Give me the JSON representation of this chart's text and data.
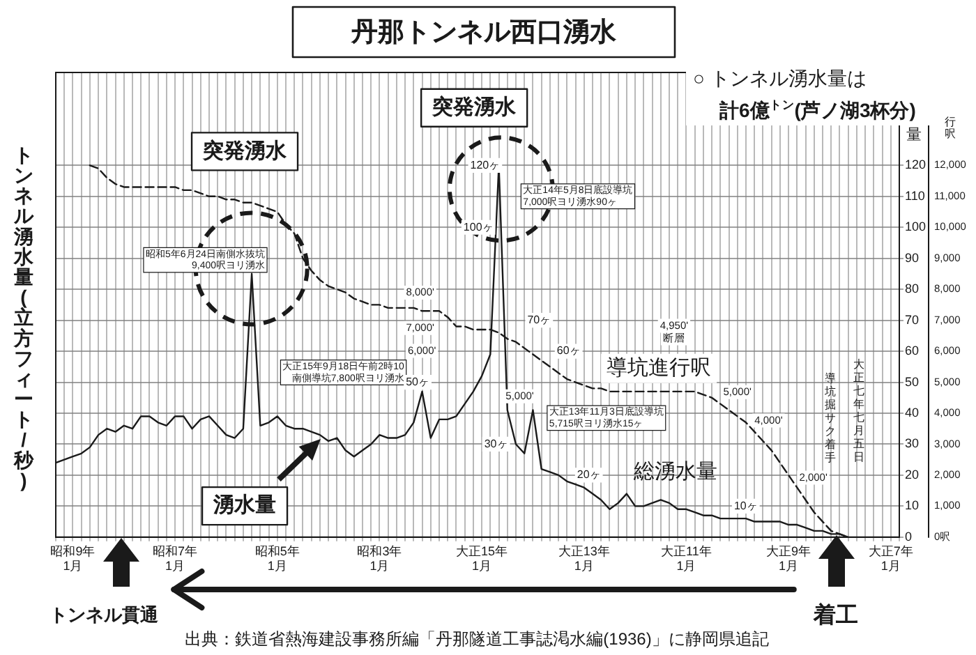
{
  "chart_data": {
    "type": "line",
    "title": "丹那トンネル西口湧水",
    "ylabel": "トンネル湧水量(立方フィート/秒)",
    "y2label": "行呎",
    "categories": [
      null,
      null,
      "昭和9年\n1月",
      null,
      null,
      null,
      null,
      null,
      null,
      null,
      null,
      null,
      null,
      null,
      "昭和7年\n1月",
      null,
      null,
      null,
      null,
      null,
      null,
      null,
      null,
      null,
      null,
      null,
      "昭和5年\n1月",
      null,
      null,
      null,
      null,
      null,
      null,
      null,
      null,
      null,
      null,
      null,
      "昭和3年\n1月",
      null,
      null,
      null,
      null,
      null,
      null,
      null,
      null,
      null,
      null,
      null,
      "大正15年\n1月",
      null,
      null,
      null,
      null,
      null,
      null,
      null,
      null,
      null,
      null,
      null,
      "大正13年\n1月",
      null,
      null,
      null,
      null,
      null,
      null,
      null,
      null,
      null,
      null,
      null,
      "大正11年\n1月",
      null,
      null,
      null,
      null,
      null,
      null,
      null,
      null,
      null,
      null,
      null,
      "大正9年\n1月",
      null,
      null,
      null,
      null,
      null,
      null,
      null,
      null,
      null,
      null,
      null,
      "大正7年\n1月",
      null
    ],
    "ylim": [
      0,
      150
    ],
    "yticks": [
      0,
      10,
      20,
      30,
      40,
      50,
      60,
      70,
      80,
      90,
      100,
      110,
      120
    ],
    "y2lim": [
      0,
      15000
    ],
    "y2ticks": [
      {
        "value": 0,
        "label": "0呎"
      },
      {
        "value": 1000,
        "label": "1,000"
      },
      {
        "value": 2000,
        "label": "2,000"
      },
      {
        "value": 3000,
        "label": "3,000"
      },
      {
        "value": 4000,
        "label": "4,000"
      },
      {
        "value": 5000,
        "label": "5,000"
      },
      {
        "value": 6000,
        "label": "6,000"
      },
      {
        "value": 7000,
        "label": "7,000"
      },
      {
        "value": 8000,
        "label": "8,000"
      },
      {
        "value": 9000,
        "label": "9,000"
      },
      {
        "value": 10000,
        "label": "10,000"
      },
      {
        "value": 11000,
        "label": "11,000"
      },
      {
        "value": 12000,
        "label": "12,000"
      }
    ],
    "grid": true,
    "marker": "none",
    "line_style": "solid",
    "series": [
      {
        "name": "総湧水量",
        "color": "#1a1a1a",
        "values": [
          24,
          25,
          26,
          27,
          29,
          33,
          35,
          34,
          36,
          35,
          39,
          39,
          37,
          36,
          39,
          39,
          35,
          38,
          39,
          36,
          33,
          32,
          35,
          85,
          36,
          37,
          39,
          36,
          35,
          35,
          34,
          33,
          31,
          32,
          28,
          26,
          28,
          30,
          33,
          32,
          32,
          33,
          37,
          47,
          32,
          38,
          38,
          39,
          43,
          47,
          52,
          59,
          120,
          41,
          30,
          27,
          41,
          22,
          21,
          20,
          18,
          17,
          16,
          14,
          12,
          9,
          11,
          14,
          10,
          10,
          11,
          12,
          11,
          9,
          9,
          8,
          7,
          7,
          6,
          6,
          6,
          6,
          5,
          5,
          5,
          5,
          4,
          4,
          3,
          2,
          2,
          1,
          1,
          0,
          null,
          null,
          null,
          null,
          null,
          null
        ]
      },
      {
        "name": "導坑進行呎",
        "color": "#1a1a1a",
        "line_style": "dashed",
        "axis": "y2",
        "values": [
          null,
          null,
          null,
          null,
          12000,
          11900,
          11600,
          11400,
          11300,
          11300,
          11300,
          11300,
          11300,
          11300,
          11300,
          11200,
          11200,
          11100,
          11000,
          11000,
          10900,
          10900,
          10800,
          10800,
          10700,
          10600,
          10500,
          10100,
          9800,
          9000,
          8600,
          8300,
          8100,
          8000,
          7900,
          7700,
          7600,
          7500,
          7500,
          7400,
          7400,
          7400,
          7400,
          7300,
          7300,
          7300,
          7100,
          6800,
          6800,
          6700,
          6700,
          6700,
          6600,
          6400,
          6300,
          6100,
          5900,
          5700,
          5500,
          5300,
          5100,
          5000,
          4900,
          4800,
          4800,
          4700,
          4700,
          4700,
          4700,
          4700,
          4700,
          4700,
          4700,
          4700,
          4700,
          4700,
          4600,
          4500,
          4300,
          4100,
          3900,
          3700,
          3400,
          3100,
          2800,
          2400,
          2000,
          1600,
          1200,
          800,
          500,
          200,
          100,
          0,
          null,
          null,
          null,
          null,
          null,
          null
        ]
      }
    ],
    "annotations": [
      "○ トンネル湧水量は",
      "計6億$^{トン}$(芦ノ湖3杯分)",
      "突発湧水",
      "突発湧水",
      {
        "text": "湧水量",
        "y": 33
      },
      "トンネル貫通",
      "着工",
      "出典：鉄道省熱海建設事務所編「丹那隧道工事誌渇水編(1936)」に静岡県追記",
      "量",
      "大正七年七月五日",
      "導坑掘サク着手",
      "8,000'",
      "7,000'",
      "6,000'",
      "5,000'",
      "4,950'",
      "断層",
      "5,000'",
      "4,000'",
      "2,000'",
      "昭和5年6月24日南側水抜坑9,400呎ヨリ湧水",
      "大正15年9月18日午前2時10南側導坑7,800呎ヨリ湧水",
      "大正14年5月8日底設導坑7,000呎ヨリ湧水90ヶ",
      "大正13年11月3日底設導坑5,715呎ヨリ湧水15ヶ",
      {
        "text": "120ヶ",
        "y": 120
      },
      {
        "text": "100ヶ",
        "y": 100
      },
      {
        "text": "70ヶ",
        "y": 70
      },
      {
        "text": "60ヶ",
        "y": 60
      },
      {
        "text": "50ヶ",
        "y": 50
      },
      {
        "text": "30ヶ",
        "y": 30
      },
      {
        "text": "20ヶ",
        "y": 20
      },
      {
        "text": "10ヶ",
        "y": 10
      }
    ]
  }
}
